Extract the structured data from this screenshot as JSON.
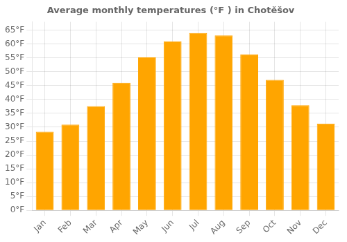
{
  "chart_data": {
    "type": "bar",
    "title": "Average monthly temperatures (°F ) in Chotěšov",
    "categories": [
      "Jan",
      "Feb",
      "Mar",
      "Apr",
      "May",
      "Jun",
      "Jul",
      "Aug",
      "Sep",
      "Oct",
      "Nov",
      "Dec"
    ],
    "values": [
      28.4,
      30.9,
      37.6,
      46.0,
      55.2,
      61.0,
      64.0,
      63.1,
      56.3,
      47.1,
      37.9,
      31.3
    ],
    "color": "#FFA500",
    "ylim": [
      0,
      68
    ],
    "yticks": [
      {
        "value": 0,
        "label": "0°F"
      },
      {
        "value": 5,
        "label": "5°F"
      },
      {
        "value": 10,
        "label": "10°F"
      },
      {
        "value": 15,
        "label": "15°F"
      },
      {
        "value": 20,
        "label": "20°F"
      },
      {
        "value": 25,
        "label": "25°F"
      },
      {
        "value": 30,
        "label": "30°F"
      },
      {
        "value": 35,
        "label": "35°F"
      },
      {
        "value": 40,
        "label": "40°F"
      },
      {
        "value": 45,
        "label": "45°F"
      },
      {
        "value": 50,
        "label": "50°F"
      },
      {
        "value": 55,
        "label": "55°F"
      },
      {
        "value": 60,
        "label": "60°F"
      },
      {
        "value": 65,
        "label": "65°F"
      }
    ],
    "grid": true
  }
}
